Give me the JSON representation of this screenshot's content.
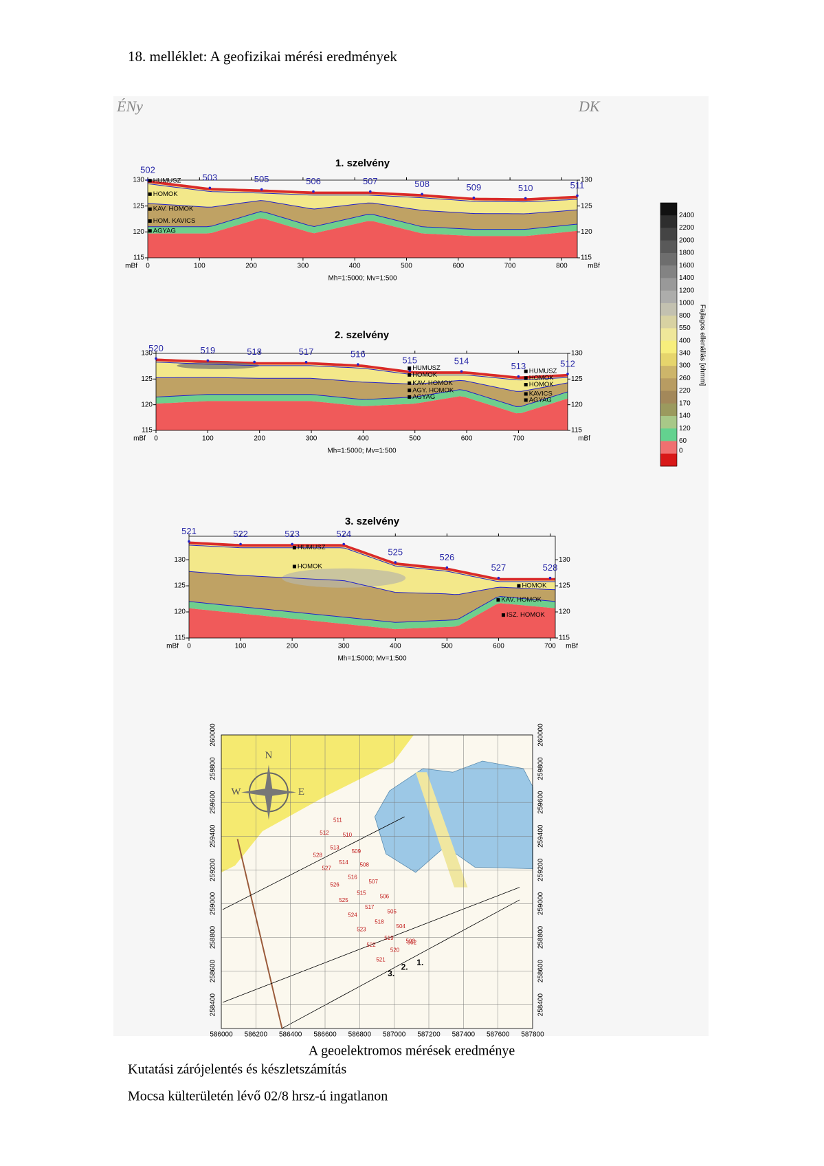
{
  "header": {
    "title": "18. melléklet: A geofizikai mérési eredmények"
  },
  "directions": {
    "left": "ÉNy",
    "right": "DK"
  },
  "profiles": [
    {
      "title": "1. szelvény",
      "stations": [
        "502",
        "503",
        "505",
        "506",
        "507",
        "508",
        "509",
        "510",
        "511"
      ],
      "layers": [
        "HUMUSZ",
        "HOMOK",
        "KAV. HOMOK",
        "HOM. KAVICS",
        "AGYAG"
      ],
      "xlim": [
        0,
        830
      ],
      "ylim": [
        115,
        130
      ],
      "xticks": [
        0,
        100,
        200,
        300,
        400,
        500,
        600,
        700,
        800
      ],
      "yticks": [
        115,
        120,
        125,
        130
      ],
      "unit": "mBf",
      "scale": "Mh=1:5000; Mv=1:500"
    },
    {
      "title": "2. szelvény",
      "stations": [
        "520",
        "519",
        "518",
        "517",
        "516",
        "515",
        "514",
        "513",
        "512"
      ],
      "layers": [
        "HUMUSZ",
        "HOMOK",
        "KAV. HOMOK",
        "AGY. HOMOK",
        "AGYAG",
        "HUMUSZ",
        "HOMOK",
        "HOMOK",
        "KAVICS",
        "AGYAG"
      ],
      "xlim": [
        0,
        795
      ],
      "ylim": [
        115,
        130
      ],
      "xticks": [
        0,
        100,
        200,
        300,
        400,
        500,
        600,
        700
      ],
      "yticks": [
        115,
        120,
        125,
        130
      ],
      "unit": "mBf",
      "scale": "Mh=1:5000; Mv=1:500"
    },
    {
      "title": "3. szelvény",
      "stations": [
        "521",
        "522",
        "523",
        "524",
        "525",
        "526",
        "527",
        "528"
      ],
      "layers": [
        "HUMUSZ",
        "HOMOK",
        "HOMOK",
        "KAV. HOMOK",
        "ISZ. HOMOK"
      ],
      "xlim": [
        0,
        710
      ],
      "ylim": [
        115,
        134.5
      ],
      "xticks": [
        0,
        100,
        200,
        300,
        400,
        500,
        600,
        700
      ],
      "yticks": [
        115,
        120,
        125,
        130
      ],
      "unit": "mBf",
      "scale": "Mh=1:5000; Mv=1:500"
    }
  ],
  "colorbar": {
    "title": "Fajlagos ellenállás [ohmm]",
    "labels": [
      "2400",
      "2200",
      "2000",
      "1800",
      "1600",
      "1400",
      "1200",
      "1000",
      "800",
      "550",
      "400",
      "340",
      "300",
      "260",
      "220",
      "170",
      "140",
      "120",
      "60",
      "0"
    ],
    "colors": [
      "#111111",
      "#2e2e2e",
      "#444444",
      "#595959",
      "#6e6e6e",
      "#838383",
      "#999999",
      "#adadab",
      "#c3c1b0",
      "#d8d2a2",
      "#efe79a",
      "#f7ee7c",
      "#e6d56c",
      "#cdb56a",
      "#b89c62",
      "#a3885a",
      "#9b9a5e",
      "#a8c888",
      "#63d28f",
      "#f07070",
      "#d81818"
    ]
  },
  "map": {
    "xlim": [
      586000,
      587800
    ],
    "ylim": [
      258260,
      260000
    ],
    "xticks": [
      586000,
      586200,
      586400,
      586600,
      586800,
      587000,
      587200,
      587400,
      587600,
      587800
    ],
    "yticks": [
      258400,
      258600,
      258800,
      259000,
      259200,
      259400,
      259600,
      259800,
      260000
    ],
    "points": [
      "511",
      "512",
      "510",
      "513",
      "509",
      "528",
      "514",
      "508",
      "527",
      "516",
      "507",
      "526",
      "515",
      "506",
      "525",
      "517",
      "505",
      "524",
      "518",
      "504",
      "523",
      "519",
      "503",
      "522",
      "520",
      "502",
      "521"
    ],
    "profiles": [
      "1.",
      "2.",
      "3."
    ],
    "compass": [
      "N",
      "E",
      "W"
    ]
  },
  "caption": "A geoelektromos mérések eredménye",
  "footer": [
    "Kutatási zárójelentés és készletszámítás",
    "Mocsa külterületén lévő 02/8 hrsz-ú ingatlanon"
  ]
}
